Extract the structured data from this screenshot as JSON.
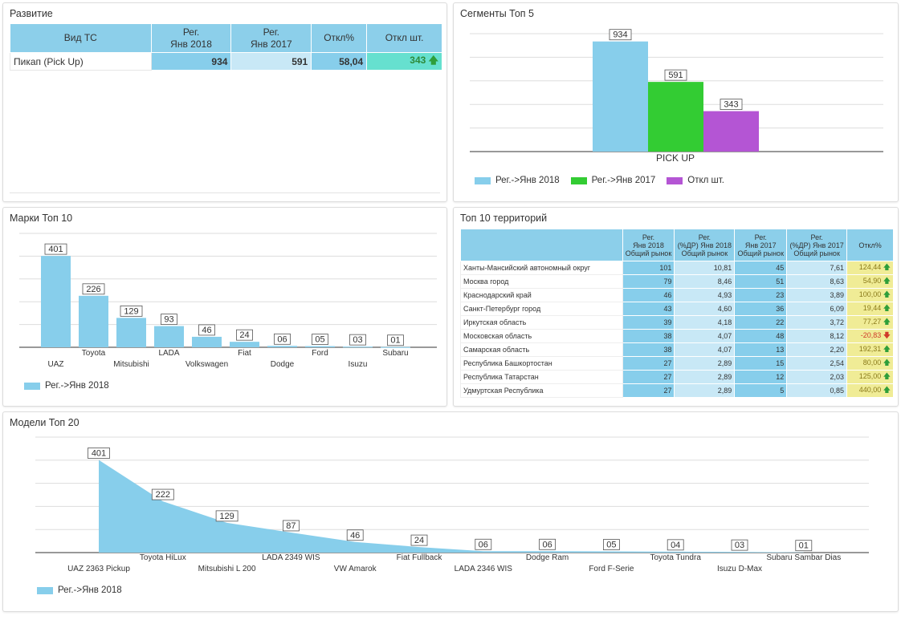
{
  "colors": {
    "series2018": "#87ceeb",
    "series2017": "#33cc33",
    "diff": "#b455d4",
    "highlight_bg": "#c8e8f6",
    "yellow": "#f0ec96",
    "green_cell": "#66e0cf"
  },
  "razvitie": {
    "title": "Развитие",
    "headers": [
      "Вид ТС",
      "Рег.\nЯнв 2018",
      "Рег.\nЯнв 2017",
      "Откл%",
      "Откл шт."
    ],
    "row": {
      "label": "Пикап (Pick Up)",
      "reg2018": "934",
      "reg2017": "591",
      "pct": "58,04",
      "diff": "343",
      "trend": "up"
    }
  },
  "segments": {
    "title": "Сегменты Топ 5",
    "chart_data": {
      "type": "bar",
      "categories": [
        "PICK UP"
      ],
      "series": [
        {
          "name": "Рег.->Янв 2018",
          "values": [
            934
          ]
        },
        {
          "name": "Рег.->Янв 2017",
          "values": [
            591
          ]
        },
        {
          "name": "Откл шт.",
          "values": [
            343
          ]
        }
      ],
      "data_labels": [
        "934",
        "591",
        "343"
      ],
      "ylim": [
        0,
        1000
      ],
      "legend": "bottom-left"
    }
  },
  "brands": {
    "title": "Марки Топ 10",
    "chart_data": {
      "type": "bar",
      "categories": [
        "UAZ",
        "Toyota",
        "Mitsubishi",
        "LADA",
        "Volkswagen",
        "Fiat",
        "Dodge",
        "Ford",
        "Isuzu",
        "Subaru"
      ],
      "series": [
        {
          "name": "Рег.->Янв 2018",
          "values": [
            401,
            226,
            129,
            93,
            46,
            24,
            6,
            5,
            3,
            1
          ]
        }
      ],
      "data_labels": [
        "401",
        "226",
        "129",
        "93",
        "46",
        "24",
        "06",
        "05",
        "03",
        "01"
      ],
      "ylim": [
        0,
        500
      ],
      "legend": "bottom-left"
    }
  },
  "territories": {
    "title": "Топ 10 территорий",
    "headers": [
      "",
      "Рег.\nЯнв 2018\nОбщий рынок",
      "Рег.\n(%ДР) Янв 2018\nОбщий рынок",
      "Рег.\nЯнв 2017\nОбщий рынок",
      "Рег.\n(%ДР) Янв 2017\nОбщий рынок",
      "Откл%"
    ],
    "rows": [
      {
        "name": "Ханты-Мансийский автономный округ",
        "r18": "101",
        "p18": "10,81",
        "r17": "45",
        "p17": "7,61",
        "d": "124,44",
        "t": "up"
      },
      {
        "name": "Москва город",
        "r18": "79",
        "p18": "8,46",
        "r17": "51",
        "p17": "8,63",
        "d": "54,90",
        "t": "up"
      },
      {
        "name": "Краснодарский край",
        "r18": "46",
        "p18": "4,93",
        "r17": "23",
        "p17": "3,89",
        "d": "100,00",
        "t": "up"
      },
      {
        "name": "Санкт-Петербург город",
        "r18": "43",
        "p18": "4,60",
        "r17": "36",
        "p17": "6,09",
        "d": "19,44",
        "t": "up"
      },
      {
        "name": "Иркутская область",
        "r18": "39",
        "p18": "4,18",
        "r17": "22",
        "p17": "3,72",
        "d": "77,27",
        "t": "up"
      },
      {
        "name": "Московская область",
        "r18": "38",
        "p18": "4,07",
        "r17": "48",
        "p17": "8,12",
        "d": "-20,83",
        "t": "down"
      },
      {
        "name": "Самарская область",
        "r18": "38",
        "p18": "4,07",
        "r17": "13",
        "p17": "2,20",
        "d": "192,31",
        "t": "up"
      },
      {
        "name": "Республика Башкортостан",
        "r18": "27",
        "p18": "2,89",
        "r17": "15",
        "p17": "2,54",
        "d": "80,00",
        "t": "up"
      },
      {
        "name": "Республика Татарстан",
        "r18": "27",
        "p18": "2,89",
        "r17": "12",
        "p17": "2,03",
        "d": "125,00",
        "t": "up"
      },
      {
        "name": "Удмуртская Республика",
        "r18": "27",
        "p18": "2,89",
        "r17": "5",
        "p17": "0,85",
        "d": "440,00",
        "t": "up"
      }
    ]
  },
  "models": {
    "title": "Модели Топ 20",
    "chart_data": {
      "type": "area",
      "categories": [
        "UAZ 2363 Pickup",
        "Toyota HiLux",
        "Mitsubishi L 200",
        "LADA 2349 WIS",
        "VW Amarok",
        "Fiat Fullback",
        "LADA 2346 WIS",
        "Dodge Ram",
        "Ford F-Serie",
        "Toyota Tundra",
        "Isuzu D-Max",
        "Subaru Sambar Dias"
      ],
      "series": [
        {
          "name": "Рег.->Янв 2018",
          "values": [
            401,
            222,
            129,
            87,
            46,
            24,
            6,
            6,
            5,
            4,
            3,
            1
          ]
        }
      ],
      "data_labels": [
        "401",
        "222",
        "129",
        "87",
        "46",
        "24",
        "06",
        "06",
        "05",
        "04",
        "03",
        "01"
      ],
      "ylim": [
        0,
        500
      ],
      "legend": "bottom-left"
    }
  }
}
